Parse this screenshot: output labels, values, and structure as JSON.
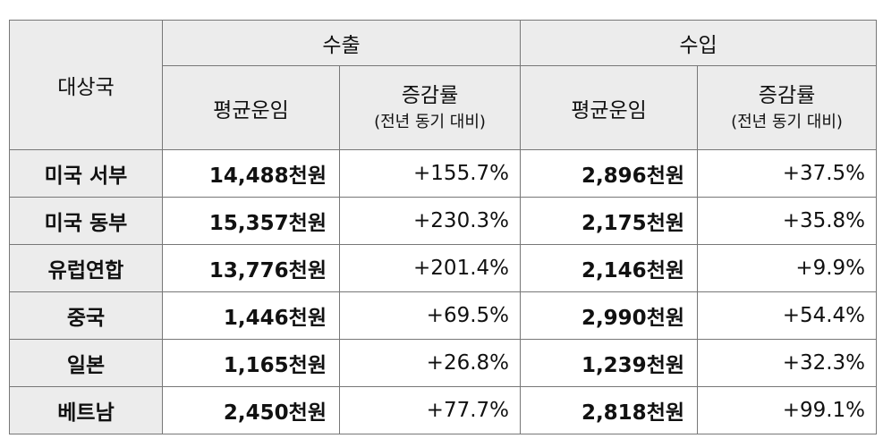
{
  "table": {
    "header": {
      "country": "대상국",
      "export": "수출",
      "import": "수입",
      "avg_freight": "평균운임",
      "change_rate": "증감률",
      "change_note": "(전년 동기 대비)"
    },
    "rows": [
      {
        "country": "미국 서부",
        "export_avg": "14,488천원",
        "export_rate": "+155.7%",
        "import_avg": "2,896천원",
        "import_rate": "+37.5%"
      },
      {
        "country": "미국 동부",
        "export_avg": "15,357천원",
        "export_rate": "+230.3%",
        "import_avg": "2,175천원",
        "import_rate": "+35.8%"
      },
      {
        "country": "유럽연합",
        "export_avg": "13,776천원",
        "export_rate": "+201.4%",
        "import_avg": "2,146천원",
        "import_rate": "+9.9%"
      },
      {
        "country": "중국",
        "export_avg": "1,446천원",
        "export_rate": "+69.5%",
        "import_avg": "2,990천원",
        "import_rate": "+54.4%"
      },
      {
        "country": "일본",
        "export_avg": "1,165천원",
        "export_rate": "+26.8%",
        "import_avg": "1,239천원",
        "import_rate": "+32.3%"
      },
      {
        "country": "베트남",
        "export_avg": "2,450천원",
        "export_rate": "+77.7%",
        "import_avg": "2,818천원",
        "import_rate": "+99.1%"
      }
    ]
  }
}
